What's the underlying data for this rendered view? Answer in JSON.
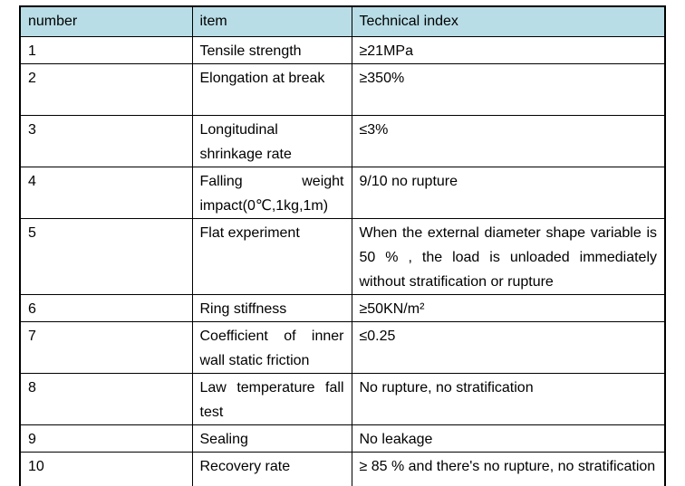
{
  "table": {
    "headers": {
      "number": "number",
      "item": "item",
      "technical_index": "Technical index"
    },
    "rows": [
      {
        "number": "1",
        "item": "Tensile strength",
        "index": "≥21MPa"
      },
      {
        "number": "2",
        "item": "Elongation at break",
        "index": "≥350%"
      },
      {
        "number": "3",
        "item": "Longitudinal shrinkage rate",
        "index": "≤3%"
      },
      {
        "number": "4",
        "item": "Falling weight impact(0℃,1kg,1m)",
        "index": "9/10 no rupture"
      },
      {
        "number": "5",
        "item": "Flat experiment",
        "index": "When the external diameter shape variable is 50 % , the load is unloaded immediately without stratification or rupture"
      },
      {
        "number": "6",
        "item": "Ring stiffness",
        "index": "≥50KN/m²"
      },
      {
        "number": "7",
        "item": "Coefficient of inner wall static friction",
        "index": "≤0.25"
      },
      {
        "number": "8",
        "item": "Law temperature fall test",
        "index": "No rupture, no stratification"
      },
      {
        "number": "9",
        "item": "Sealing",
        "index": "No leakage"
      },
      {
        "number": "10",
        "item": "Recovery rate",
        "index": "≥ 85 % and there's no rupture, no stratification"
      }
    ],
    "colors": {
      "header_background": "#b8dde6",
      "border": "#000000",
      "text": "#000000"
    }
  }
}
